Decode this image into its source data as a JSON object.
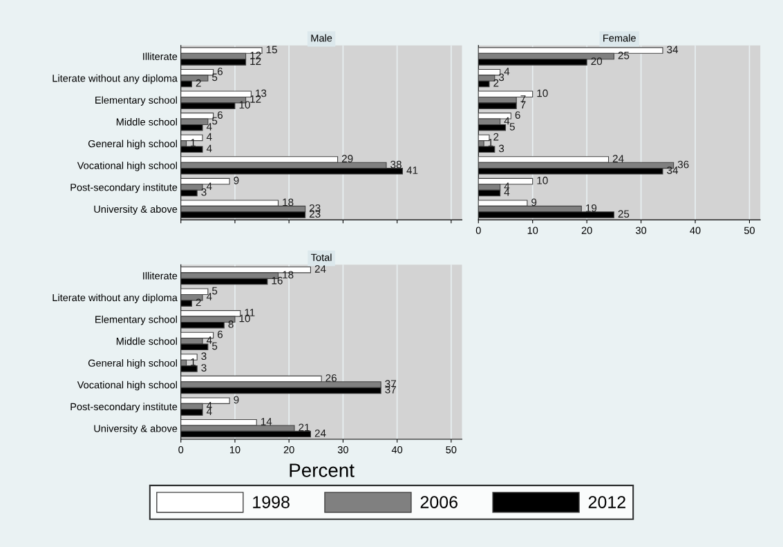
{
  "chart_data": [
    {
      "type": "bar",
      "orientation": "horizontal",
      "title": "Male",
      "categories": [
        "Illiterate",
        "Literate without any diploma",
        "Elementary school",
        "Middle school",
        "General high school",
        "Vocational high school",
        "Post-secondary institute",
        "University & above"
      ],
      "series": [
        {
          "color": "#ffffff",
          "values": [
            15,
            6,
            13,
            6,
            4,
            29,
            9,
            18
          ]
        },
        {
          "color": "#808080",
          "values": [
            12,
            5,
            12,
            5,
            1,
            38,
            4,
            23
          ]
        },
        {
          "color": "#000000",
          "values": [
            12,
            2,
            10,
            4,
            4,
            41,
            3,
            23
          ]
        }
      ],
      "xlim": [
        0,
        52
      ],
      "xticks": [
        0,
        10,
        20,
        30,
        40,
        50
      ],
      "grid": "x",
      "data_labels": true,
      "tick_labels": "y"
    },
    {
      "type": "bar",
      "orientation": "horizontal",
      "title": "Female",
      "categories": [
        null,
        null,
        null,
        null,
        null,
        null,
        null,
        null
      ],
      "series": [
        {
          "color": "#ffffff",
          "values": [
            34,
            4,
            10,
            6,
            2,
            24,
            10,
            9
          ]
        },
        {
          "color": "#808080",
          "values": [
            25,
            3,
            7,
            4,
            1,
            36,
            4,
            19
          ]
        },
        {
          "color": "#000000",
          "values": [
            20,
            2,
            7,
            5,
            3,
            34,
            4,
            25
          ]
        }
      ],
      "xlim": [
        0,
        52
      ],
      "xticks": [
        0,
        10,
        20,
        30,
        40,
        50
      ],
      "grid": "x",
      "data_labels": true,
      "tick_labels": "x"
    },
    {
      "type": "bar",
      "orientation": "horizontal",
      "title": "Total",
      "xlabel": "Percent",
      "categories": [
        "Illiterate",
        "Literate without any diploma",
        "Elementary school",
        "Middle school",
        "General high school",
        "Vocational high school",
        "Post-secondary institute",
        "University & above"
      ],
      "series": [
        {
          "name": "1998",
          "color": "#ffffff",
          "values": [
            24,
            5,
            11,
            6,
            3,
            26,
            9,
            14
          ]
        },
        {
          "name": "2006",
          "color": "#808080",
          "values": [
            18,
            4,
            10,
            4,
            1,
            37,
            4,
            21
          ]
        },
        {
          "name": "2012",
          "color": "#000000",
          "values": [
            16,
            2,
            8,
            5,
            3,
            37,
            4,
            24
          ]
        }
      ],
      "xlim": [
        0,
        52
      ],
      "xticks": [
        0,
        10,
        20,
        30,
        40,
        50
      ],
      "grid": "x",
      "data_labels": true,
      "legend": "bottom"
    }
  ]
}
